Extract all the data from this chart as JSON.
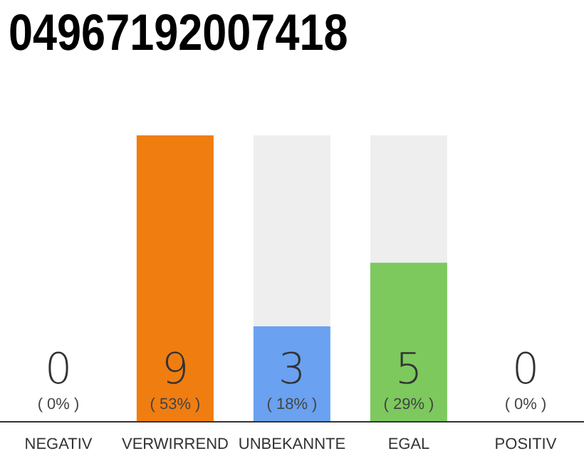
{
  "chart_data": {
    "type": "bar",
    "title": "04967192007418",
    "categories": [
      "NEGATIV",
      "VERWIRREND",
      "UNBEKANNTE",
      "EGAL",
      "POSITIV"
    ],
    "values": [
      0,
      9,
      3,
      5,
      0
    ],
    "colors": [
      "#dddddd",
      "#f07d10",
      "#6aa1f0",
      "#7dc95e",
      "#dddddd"
    ],
    "data_labels": true,
    "annotations": [
      "( 0% )",
      "( 53% )",
      "( 18% )",
      "( 29% )",
      "( 0% )"
    ]
  }
}
